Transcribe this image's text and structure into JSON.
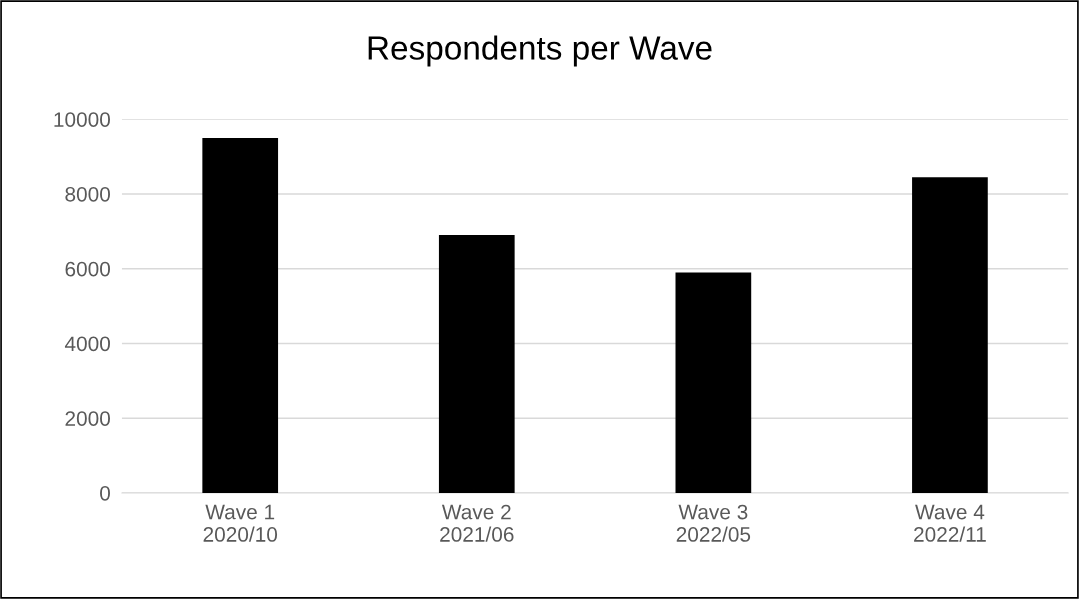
{
  "chart_data": {
    "type": "bar",
    "title": "Respondents per Wave",
    "categories": [
      "Wave 1\n2020/10",
      "Wave 2\n2021/06",
      "Wave 3\n2022/05",
      "Wave 4\n2022/11"
    ],
    "values": [
      9500,
      6900,
      5900,
      8450
    ],
    "color": "#000000",
    "ylim": [
      0,
      10000
    ],
    "yticks": [
      0,
      2000,
      4000,
      6000,
      8000,
      10000
    ],
    "grid": "y",
    "legend": false
  }
}
